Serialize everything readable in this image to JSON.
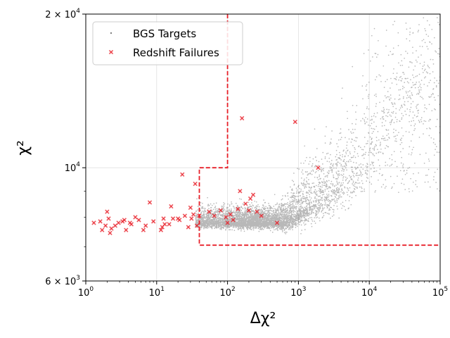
{
  "chart_data": {
    "type": "scatter",
    "title": "",
    "xlabel": "Δχ²",
    "ylabel": "χ²",
    "x_scale": "log",
    "y_scale": "log",
    "xlim": [
      1,
      100000
    ],
    "ylim": [
      6000,
      20000
    ],
    "grid": true,
    "legend_position": "top-left",
    "x_ticks": [
      {
        "value": 1,
        "base": "10",
        "exp": "0"
      },
      {
        "value": 10,
        "base": "10",
        "exp": "1"
      },
      {
        "value": 100,
        "base": "10",
        "exp": "2"
      },
      {
        "value": 1000,
        "base": "10",
        "exp": "3"
      },
      {
        "value": 10000,
        "base": "10",
        "exp": "4"
      },
      {
        "value": 100000,
        "base": "10",
        "exp": "5"
      }
    ],
    "y_ticks": [
      {
        "value": 6000,
        "mant": "6",
        "base": "10",
        "exp": "3"
      },
      {
        "value": 10000,
        "mant": "",
        "base": "10",
        "exp": "4"
      },
      {
        "value": 20000,
        "mant": "2",
        "base": "10",
        "exp": "4"
      }
    ],
    "series": [
      {
        "name": "BGS Targets",
        "color": "#000000",
        "marker": "dot",
        "note_density": "dense cloud concentrated near Δχ² 100–3000, χ² ≈ 7800, broadening upward at large Δχ²"
      },
      {
        "name": "Redshift Failures",
        "color": "#e8202a",
        "marker": "x",
        "points": [
          [
            1.3,
            7800
          ],
          [
            1.6,
            7850
          ],
          [
            1.7,
            7550
          ],
          [
            1.9,
            7700
          ],
          [
            2.0,
            8200
          ],
          [
            2.1,
            7950
          ],
          [
            2.2,
            7450
          ],
          [
            2.3,
            7600
          ],
          [
            2.6,
            7700
          ],
          [
            2.9,
            7800
          ],
          [
            3.3,
            7850
          ],
          [
            3.5,
            7900
          ],
          [
            3.7,
            7550
          ],
          [
            4.2,
            7800
          ],
          [
            4.4,
            7750
          ],
          [
            5.0,
            8000
          ],
          [
            5.6,
            7900
          ],
          [
            6.5,
            7550
          ],
          [
            7.0,
            7700
          ],
          [
            8.0,
            8550
          ],
          [
            9.0,
            7850
          ],
          [
            11.5,
            7550
          ],
          [
            12.0,
            7650
          ],
          [
            12.5,
            7950
          ],
          [
            13.0,
            7750
          ],
          [
            15.0,
            7750
          ],
          [
            16.0,
            8400
          ],
          [
            17.0,
            7950
          ],
          [
            20.0,
            7950
          ],
          [
            21.0,
            7900
          ],
          [
            23.0,
            9700
          ],
          [
            25.0,
            8050
          ],
          [
            28.0,
            7650
          ],
          [
            30.0,
            8350
          ],
          [
            31.0,
            7950
          ],
          [
            33.0,
            8100
          ],
          [
            35.0,
            9300
          ],
          [
            37.0,
            7700
          ],
          [
            40.0,
            8050
          ],
          [
            55.0,
            8200
          ],
          [
            65.0,
            8050
          ],
          [
            80.0,
            8250
          ],
          [
            95.0,
            8000
          ],
          [
            100.0,
            7800
          ],
          [
            110.0,
            8100
          ],
          [
            120.0,
            7900
          ],
          [
            140.0,
            8300
          ],
          [
            150.0,
            9000
          ],
          [
            160.0,
            12500
          ],
          [
            180.0,
            8500
          ],
          [
            200.0,
            8250
          ],
          [
            210.0,
            8700
          ],
          [
            230.0,
            8850
          ],
          [
            260.0,
            8200
          ],
          [
            300.0,
            8050
          ],
          [
            500.0,
            7800
          ],
          [
            900.0,
            12300
          ],
          [
            1900.0,
            10000
          ]
        ]
      }
    ],
    "selection_boundary": {
      "color": "#e8202a",
      "style": "dashed",
      "path": [
        [
          100,
          20000
        ],
        [
          100,
          10000
        ],
        [
          40,
          10000
        ],
        [
          40,
          7050
        ],
        [
          100000,
          7050
        ]
      ]
    }
  },
  "legend": {
    "items": [
      {
        "label": "BGS Targets",
        "color": "#808080"
      },
      {
        "label": "Redshift Failures",
        "color": "#e8202a"
      }
    ]
  }
}
